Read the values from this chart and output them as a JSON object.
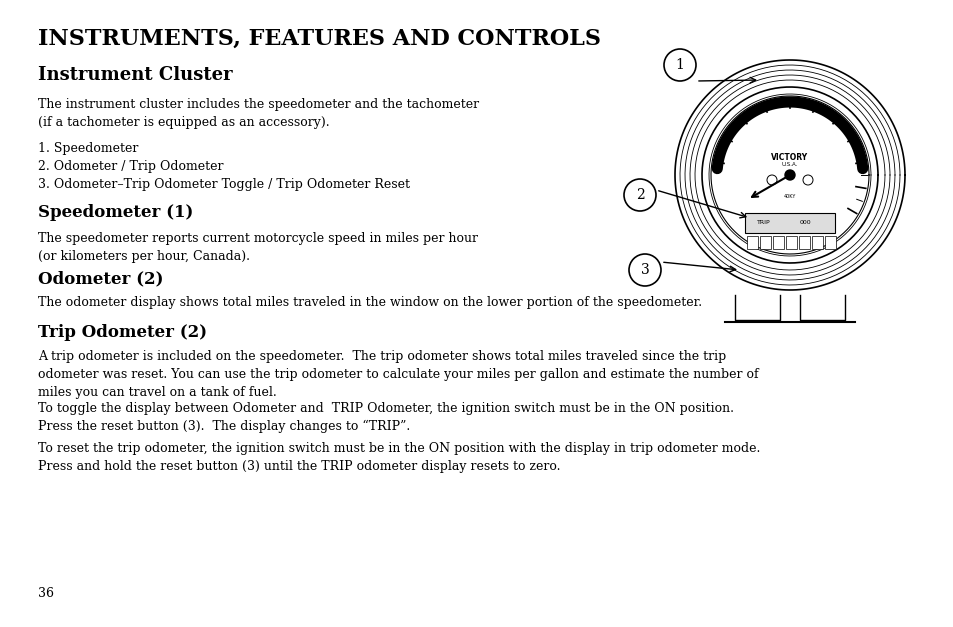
{
  "bg_color": "#ffffff",
  "text_color": "#000000",
  "title": "INSTRUMENTS, FEATURES AND CONTROLS",
  "subtitle": "Instrument Cluster",
  "intro_text": "The instrument cluster includes the speedometer and the tachometer\n(if a tachometer is equipped as an accessory).",
  "list_items": [
    "1. Speedometer",
    "2. Odometer / Trip Odometer",
    "3. Odometer–Trip Odometer Toggle / Trip Odometer Reset"
  ],
  "section1_head": "Speedometer (1)",
  "section1_text": "The speedometer reports current motorcycle speed in miles per hour\n(or kilometers per hour, Canada).",
  "section2_head": "Odometer (2)",
  "section2_text": "The odometer display shows total miles traveled in the window on the lower portion of the speedometer.",
  "section3_head": "Trip Odometer (2)",
  "section3_text1": "A trip odometer is included on the speedometer.  The trip odometer shows total miles traveled since the trip\nodometer was reset. You can use the trip odometer to calculate your miles per gallon and estimate the number of\nmiles you can travel on a tank of fuel.",
  "section3_text2": "To toggle the display between Odometer and  TRIP Odometer, the ignition switch must be in the ON position.\nPress the reset button (3).  The display changes to “TRIP”.",
  "section3_text3": "To reset the trip odometer, the ignition switch must be in the ON position with the display in trip odometer mode.\nPress and hold the reset button (3) until the TRIP odometer display resets to zero.",
  "page_number": "36",
  "font_family": "DejaVu Serif"
}
